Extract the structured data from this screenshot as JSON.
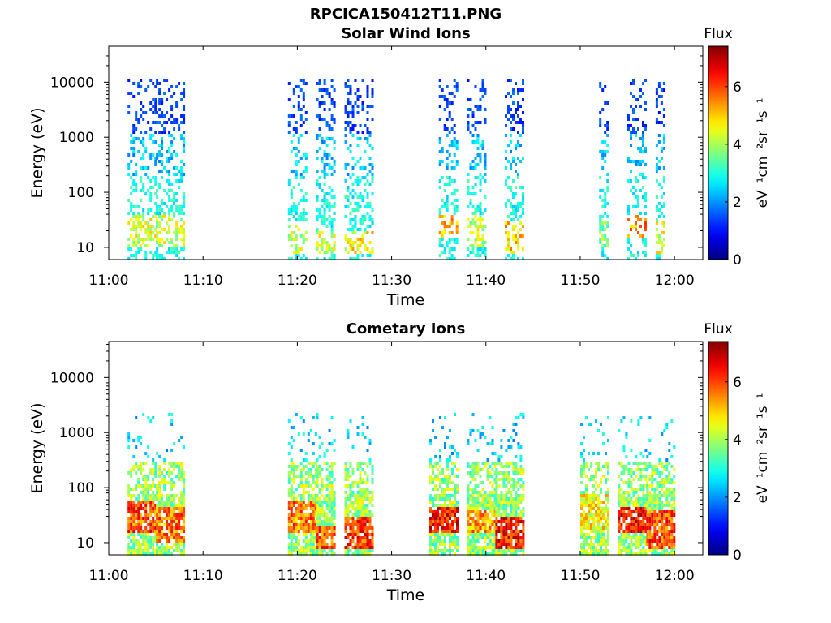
{
  "figure_title": "RPCICA150412T11.PNG",
  "colors": {
    "colormap": "jet",
    "axis": "#000000",
    "background": "#ffffff"
  },
  "chart_data": [
    {
      "type": "heatmap",
      "title": "Solar Wind Ions",
      "xlabel": "Time",
      "ylabel": "Energy (eV)",
      "y_scale": "log",
      "xticks": [
        "11:00",
        "11:10",
        "11:20",
        "11:30",
        "11:40",
        "11:50",
        "12:00"
      ],
      "yticks": [
        "10",
        "100",
        "1000",
        "10000"
      ],
      "xlim": [
        "11:00",
        "12:03"
      ],
      "ylim": [
        6,
        45000
      ],
      "grid": false,
      "colorbar": {
        "label": "Flux",
        "unit": "eV⁻¹cm⁻²sr⁻¹s⁻¹",
        "range": [
          0,
          7.4
        ],
        "ticks": [
          0,
          2,
          4,
          6
        ]
      },
      "bursts": [
        {
          "start": "11:02",
          "end": "11:05",
          "peak_energy": [
            10,
            40
          ],
          "peak_flux": 5.2
        },
        {
          "start": "11:05",
          "end": "11:08",
          "peak_energy": [
            10,
            40
          ],
          "peak_flux": 5.0
        },
        {
          "start": "11:19",
          "end": "11:21",
          "peak_energy": [
            8,
            30
          ],
          "peak_flux": 5.0
        },
        {
          "start": "11:22",
          "end": "11:24",
          "peak_energy": [
            8,
            20
          ],
          "peak_flux": 5.0
        },
        {
          "start": "11:25",
          "end": "11:28",
          "peak_energy": [
            8,
            20
          ],
          "peak_flux": 5.5
        },
        {
          "start": "11:35",
          "end": "11:37",
          "peak_energy": [
            15,
            40
          ],
          "peak_flux": 6.0
        },
        {
          "start": "11:38",
          "end": "11:40",
          "peak_energy": [
            10,
            40
          ],
          "peak_flux": 5.0
        },
        {
          "start": "11:42",
          "end": "11:44",
          "peak_energy": [
            8,
            30
          ],
          "peak_flux": 5.8
        },
        {
          "start": "11:52",
          "end": "11:53",
          "peak_energy": [
            10,
            30
          ],
          "peak_flux": 4.5
        },
        {
          "start": "11:55",
          "end": "11:57",
          "peak_energy": [
            15,
            40
          ],
          "peak_flux": 6.2
        },
        {
          "start": "11:58",
          "end": "11:59",
          "peak_energy": [
            8,
            30
          ],
          "peak_flux": 5.2
        }
      ]
    },
    {
      "type": "heatmap",
      "title": "Cometary Ions",
      "xlabel": "Time",
      "ylabel": "Energy (eV)",
      "y_scale": "log",
      "xticks": [
        "11:00",
        "11:10",
        "11:20",
        "11:30",
        "11:40",
        "11:50",
        "12:00"
      ],
      "yticks": [
        "10",
        "100",
        "1000",
        "10000"
      ],
      "xlim": [
        "11:00",
        "12:03"
      ],
      "ylim": [
        6,
        45000
      ],
      "grid": false,
      "colorbar": {
        "label": "Flux",
        "unit": "eV⁻¹cm⁻²sr⁻¹s⁻¹",
        "range": [
          0,
          7.4
        ],
        "ticks": [
          0,
          2,
          4,
          6
        ]
      },
      "bursts": [
        {
          "start": "11:02",
          "end": "11:05",
          "peak_energy": [
            15,
            60
          ],
          "peak_flux": 6.8
        },
        {
          "start": "11:05",
          "end": "11:08",
          "peak_energy": [
            10,
            50
          ],
          "peak_flux": 6.5
        },
        {
          "start": "11:19",
          "end": "11:22",
          "peak_energy": [
            15,
            60
          ],
          "peak_flux": 6.5
        },
        {
          "start": "11:22",
          "end": "11:24",
          "peak_energy": [
            8,
            20
          ],
          "peak_flux": 6.8
        },
        {
          "start": "11:25",
          "end": "11:28",
          "peak_energy": [
            8,
            30
          ],
          "peak_flux": 7.0
        },
        {
          "start": "11:34",
          "end": "11:37",
          "peak_energy": [
            15,
            50
          ],
          "peak_flux": 7.2
        },
        {
          "start": "11:38",
          "end": "11:41",
          "peak_energy": [
            15,
            40
          ],
          "peak_flux": 6.2
        },
        {
          "start": "11:41",
          "end": "11:44",
          "peak_energy": [
            8,
            30
          ],
          "peak_flux": 7.2
        },
        {
          "start": "11:50",
          "end": "11:53",
          "peak_energy": [
            15,
            80
          ],
          "peak_flux": 5.5
        },
        {
          "start": "11:54",
          "end": "11:57",
          "peak_energy": [
            15,
            50
          ],
          "peak_flux": 7.2
        },
        {
          "start": "11:57",
          "end": "12:00",
          "peak_energy": [
            8,
            40
          ],
          "peak_flux": 6.8
        }
      ]
    }
  ]
}
